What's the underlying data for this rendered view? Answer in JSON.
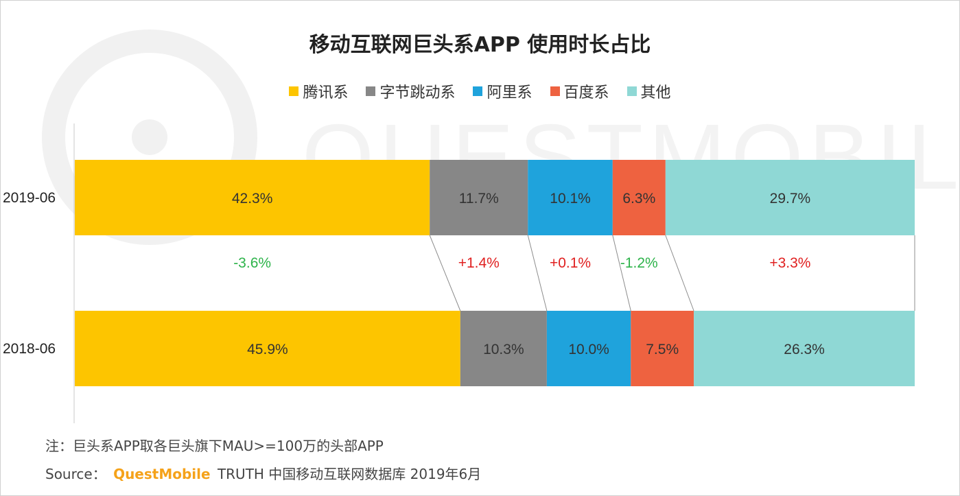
{
  "chart_data": {
    "type": "bar",
    "stacked": true,
    "orientation": "horizontal",
    "percent": true,
    "title": "移动互联网巨头系APP 使用时长占比",
    "categories": [
      "2019-06",
      "2018-06"
    ],
    "series": [
      {
        "name": "腾讯系",
        "values": [
          42.3,
          45.9
        ],
        "labels": [
          "42.3%",
          "45.9%"
        ],
        "change": "-3.6%",
        "change_color": "#2db34a",
        "color": "#fdc500"
      },
      {
        "name": "字节跳动系",
        "values": [
          11.7,
          10.3
        ],
        "labels": [
          "11.7%",
          "10.3%"
        ],
        "change": "+1.4%",
        "change_color": "#e02020",
        "color": "#878787"
      },
      {
        "name": "阿里系",
        "values": [
          10.1,
          10.0
        ],
        "labels": [
          "10.1%",
          "10.0%"
        ],
        "change": "+0.1%",
        "change_color": "#e02020",
        "color": "#1fa3dc"
      },
      {
        "name": "百度系",
        "values": [
          6.3,
          7.5
        ],
        "labels": [
          "6.3%",
          "7.5%"
        ],
        "change": "-1.2%",
        "change_color": "#2db34a",
        "color": "#ee6240"
      },
      {
        "name": "其他",
        "values": [
          29.7,
          26.3
        ],
        "labels": [
          "29.7%",
          "26.3%"
        ],
        "change": "+3.3%",
        "change_color": "#e02020",
        "color": "#8fd8d5"
      }
    ],
    "legend_position": "top-center",
    "grid": false
  },
  "watermark": "QUESTMOBILE",
  "footer": {
    "note": "注：巨头系APP取各巨头旗下MAU>=100万的头部APP",
    "source_prefix": "Source：",
    "source_brand": "QuestMobile",
    "source_rest": "TRUTH 中国移动互联网数据库 2019年6月"
  }
}
